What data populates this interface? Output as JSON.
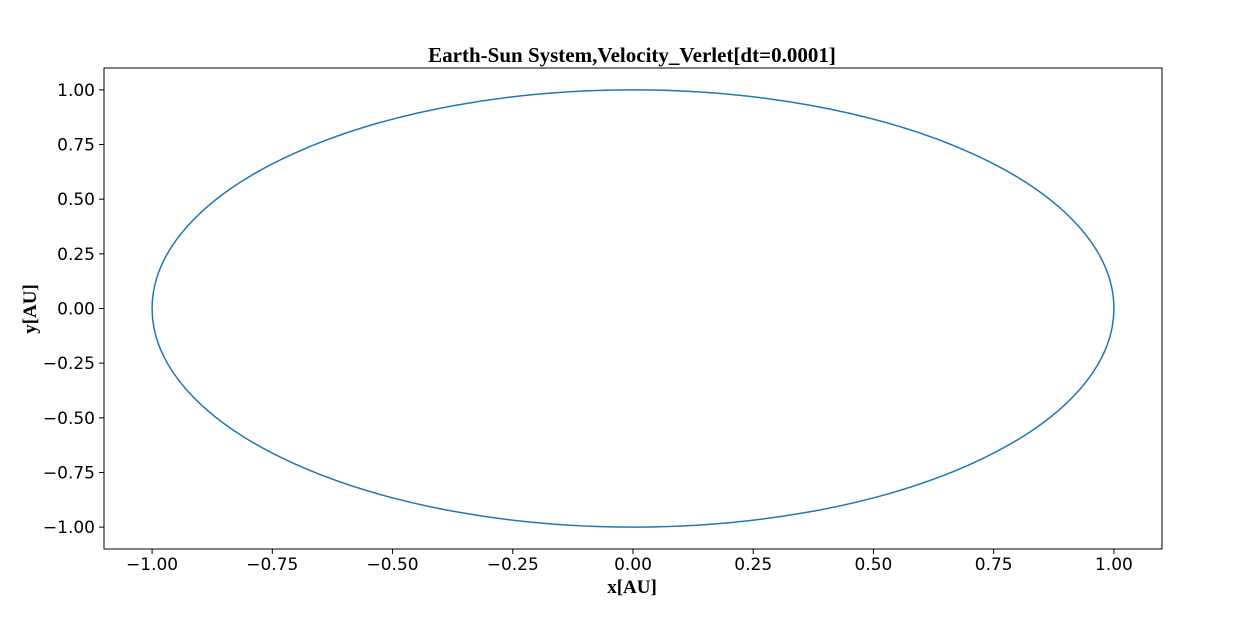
{
  "chart_data": {
    "type": "line",
    "title": "Earth-Sun System,Velocity_Verlet[dt=0.0001]",
    "xlabel": "x[AU]",
    "ylabel": "y[AU]",
    "xlim": [
      -1.1,
      1.1
    ],
    "ylim": [
      -1.1,
      1.1
    ],
    "x_ticks": [
      -1.0,
      -0.75,
      -0.5,
      -0.25,
      0.0,
      0.25,
      0.5,
      0.75,
      1.0
    ],
    "x_tick_labels": [
      "−1.00",
      "−0.75",
      "−0.50",
      "−0.25",
      "0.00",
      "0.25",
      "0.50",
      "0.75",
      "1.00"
    ],
    "y_ticks": [
      1.0,
      0.75,
      0.5,
      0.25,
      0.0,
      -0.25,
      -0.5,
      -0.75,
      -1.0
    ],
    "y_tick_labels": [
      "1.00",
      "0.75",
      "0.50",
      "0.25",
      "0.00",
      "−0.25",
      "−0.50",
      "−0.75",
      "−1.00"
    ],
    "grid": false,
    "legend": "none",
    "series": [
      {
        "color": "#1f77b4",
        "shape": "circle",
        "center": [
          0.0,
          0.0
        ],
        "radius": 1.0
      }
    ]
  }
}
